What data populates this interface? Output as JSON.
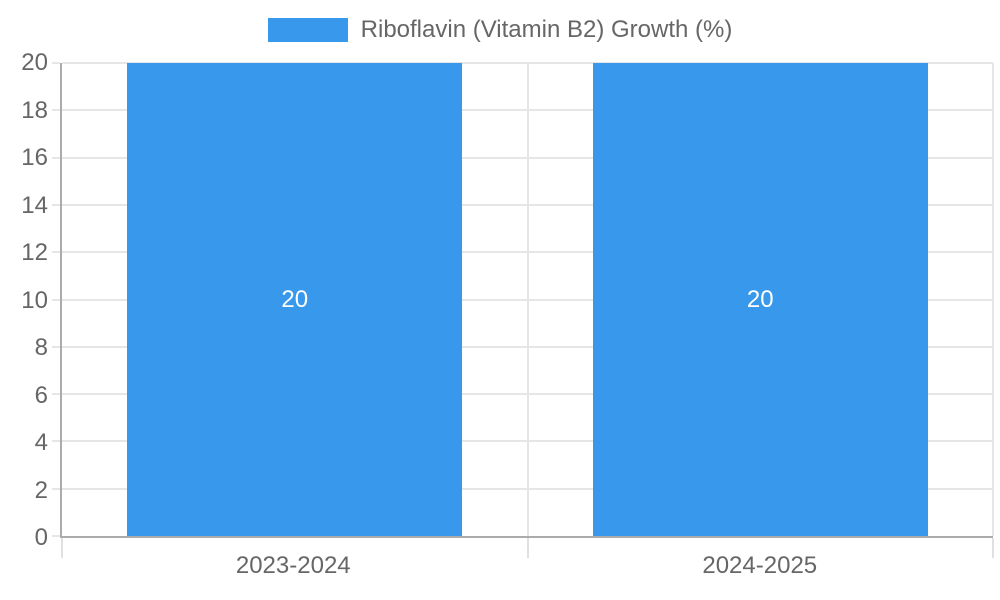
{
  "chart_data": {
    "type": "bar",
    "title": "",
    "legend": {
      "label": "Riboflavin (Vitamin B2) Growth (%)",
      "position": "top"
    },
    "categories": [
      "2023-2024",
      "2024-2025"
    ],
    "series": [
      {
        "name": "Riboflavin (Vitamin B2) Growth (%)",
        "values": [
          20,
          20
        ],
        "value_labels": [
          "20",
          "20"
        ]
      }
    ],
    "xlabel": "",
    "ylabel": "",
    "ylim": [
      0,
      20
    ],
    "ytick_step": 2,
    "ytick_labels": [
      "0",
      "2",
      "4",
      "6",
      "8",
      "10",
      "12",
      "14",
      "16",
      "18",
      "20"
    ],
    "grid": true,
    "value_labels_inside_bars": true
  },
  "colors": {
    "bar": "#3899ec",
    "value_label_text": "#ffffff",
    "axis_line": "#ababab",
    "gridline": "#e6e6e6",
    "tick_text": "#666666",
    "legend_text": "#666666",
    "background": "#ffffff"
  }
}
